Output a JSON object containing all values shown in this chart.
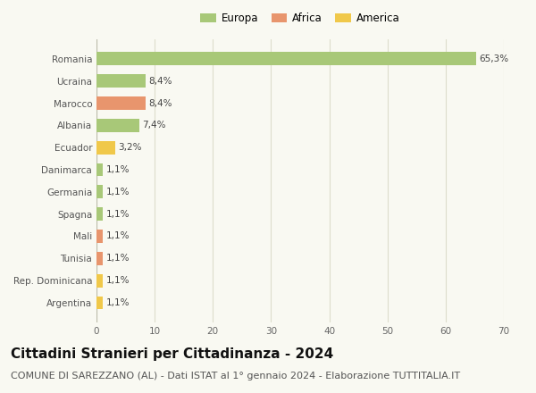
{
  "categories": [
    "Argentina",
    "Rep. Dominicana",
    "Tunisia",
    "Mali",
    "Spagna",
    "Germania",
    "Danimarca",
    "Ecuador",
    "Albania",
    "Marocco",
    "Ucraina",
    "Romania"
  ],
  "values": [
    1.1,
    1.1,
    1.1,
    1.1,
    1.1,
    1.1,
    1.1,
    3.2,
    7.4,
    8.4,
    8.4,
    65.3
  ],
  "labels": [
    "1,1%",
    "1,1%",
    "1,1%",
    "1,1%",
    "1,1%",
    "1,1%",
    "1,1%",
    "3,2%",
    "7,4%",
    "8,4%",
    "8,4%",
    "65,3%"
  ],
  "colors": [
    "#f0c84a",
    "#f0c84a",
    "#e8956d",
    "#e8956d",
    "#a8c878",
    "#a8c878",
    "#a8c878",
    "#f0c84a",
    "#a8c878",
    "#e8956d",
    "#a8c878",
    "#a8c878"
  ],
  "legend": [
    {
      "label": "Europa",
      "color": "#a8c878"
    },
    {
      "label": "Africa",
      "color": "#e8956d"
    },
    {
      "label": "America",
      "color": "#f0c84a"
    }
  ],
  "xlim": [
    0,
    70
  ],
  "xticks": [
    0,
    10,
    20,
    30,
    40,
    50,
    60,
    70
  ],
  "title": "Cittadini Stranieri per Cittadinanza - 2024",
  "subtitle": "COMUNE DI SAREZZANO (AL) - Dati ISTAT al 1° gennaio 2024 - Elaborazione TUTTITALIA.IT",
  "title_fontsize": 11,
  "subtitle_fontsize": 8,
  "background_color": "#f9f9f2",
  "grid_color": "#ddddcc"
}
